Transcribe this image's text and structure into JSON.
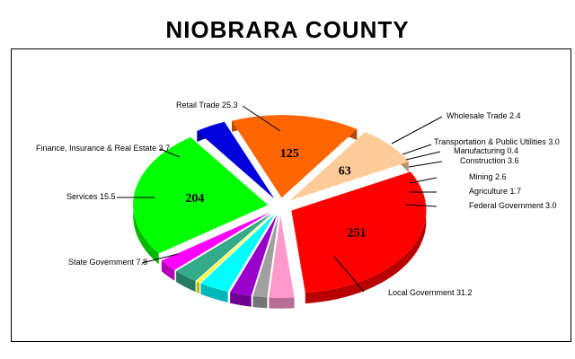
{
  "chart_data": {
    "type": "pie",
    "title": "NIOBRARA COUNTY",
    "slices": [
      {
        "name": "Local Government",
        "percent": 31.2,
        "value": 251,
        "color": "#ff0000"
      },
      {
        "name": "Federal Government",
        "percent": 3.0,
        "color": "#ff99cc"
      },
      {
        "name": "Agriculture",
        "percent": 1.7,
        "color": "#a0a0a0"
      },
      {
        "name": "Mining",
        "percent": 2.6,
        "color": "#9900cc"
      },
      {
        "name": "Construction",
        "percent": 3.6,
        "color": "#00ffff"
      },
      {
        "name": "Manufacturing",
        "percent": 0.4,
        "color": "#ffff00"
      },
      {
        "name": "Transportation & Public Utilities",
        "percent": 3.0,
        "color": "#33aa88"
      },
      {
        "name": "Wholesale Trade",
        "percent": 2.4,
        "color": "#ff00ff"
      },
      {
        "name": "Retail Trade",
        "percent": 25.3,
        "value": 204,
        "color": "#00ff00"
      },
      {
        "name": "Finance, Insurance & Real Estate",
        "percent": 3.7,
        "color": "#0000dd"
      },
      {
        "name": "Services",
        "percent": 15.5,
        "value": 125,
        "color": "#ff6600"
      },
      {
        "name": "State Government",
        "percent": 7.8,
        "value": 63,
        "color": "#ffcc99"
      }
    ]
  }
}
